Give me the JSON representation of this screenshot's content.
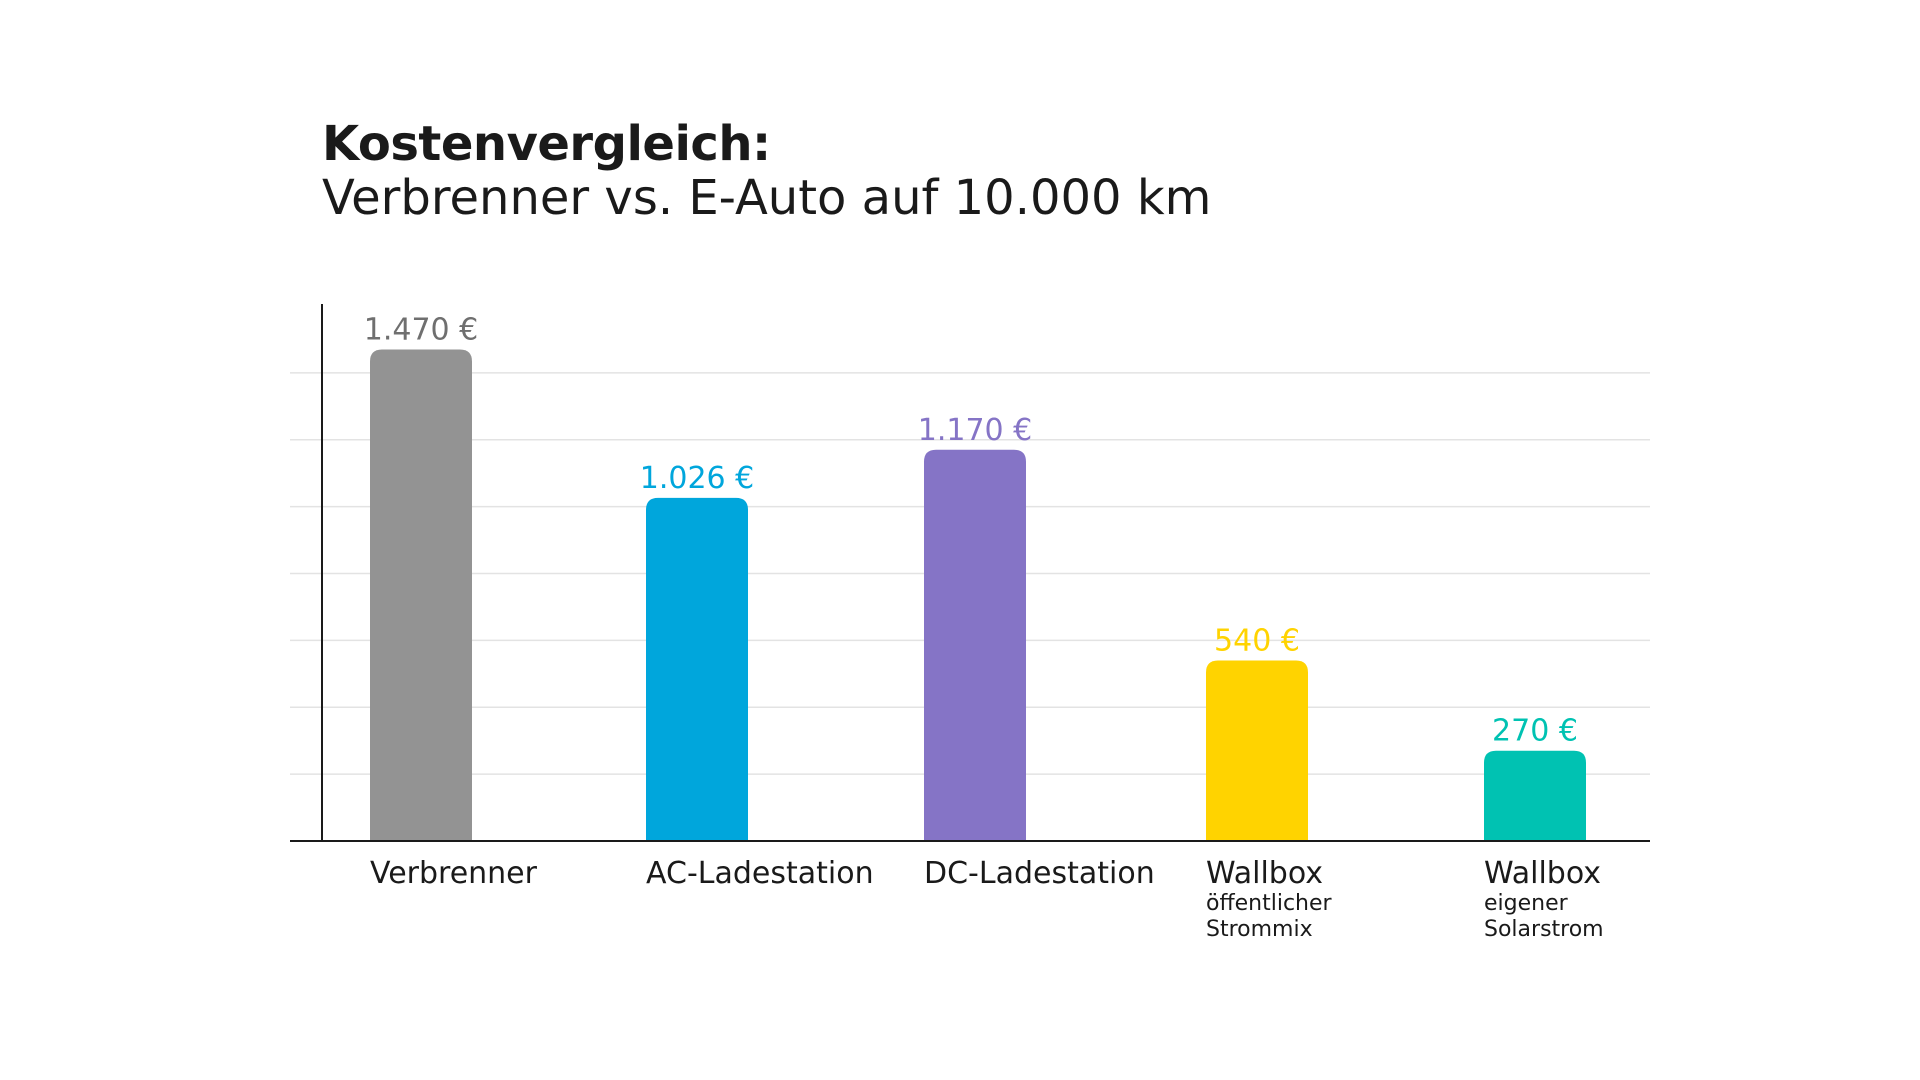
{
  "chart_data": {
    "type": "bar",
    "title": "Kostenvergleich:",
    "subtitle": "Verbrenner vs. E-Auto auf 10.000 km",
    "categories": [
      {
        "name": "Verbrenner",
        "sub": []
      },
      {
        "name": "AC-Ladestation",
        "sub": []
      },
      {
        "name": "DC-Ladestation",
        "sub": []
      },
      {
        "name": "Wallbox",
        "sub": [
          "öffentlicher",
          "Strommix"
        ]
      },
      {
        "name": "Wallbox",
        "sub": [
          "eigener",
          "Solarstrom"
        ]
      }
    ],
    "values": [
      1470,
      1026,
      1170,
      540,
      270
    ],
    "value_labels": [
      "1.470 €",
      "1.026 €",
      "1.170 €",
      "540 €",
      "270 €"
    ],
    "colors": [
      "#939393",
      "#00a6dc",
      "#8574c6",
      "#ffd300",
      "#00c2b2"
    ],
    "ylim": [
      0,
      1600
    ],
    "grid": true,
    "gridline_step": 200
  }
}
